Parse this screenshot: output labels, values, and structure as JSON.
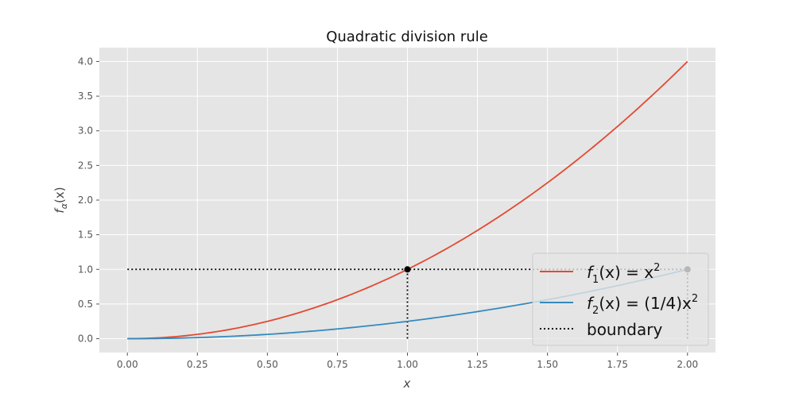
{
  "chart_data": {
    "type": "line",
    "title": "Quadratic division rule",
    "xlabel": "x",
    "ylabel": {
      "base": "f",
      "sub": "α",
      "rest": "(x)"
    },
    "xlim": [
      -0.1,
      2.1
    ],
    "ylim": [
      -0.2,
      4.2
    ],
    "xticks": [
      0.0,
      0.25,
      0.5,
      0.75,
      1.0,
      1.25,
      1.5,
      1.75,
      2.0
    ],
    "xtick_labels": [
      "0.00",
      "0.25",
      "0.50",
      "0.75",
      "1.00",
      "1.25",
      "1.50",
      "1.75",
      "2.00"
    ],
    "yticks": [
      0.0,
      0.5,
      1.0,
      1.5,
      2.0,
      2.5,
      3.0,
      3.5,
      4.0
    ],
    "ytick_labels": [
      "0.0",
      "0.5",
      "1.0",
      "1.5",
      "2.0",
      "2.5",
      "3.0",
      "3.5",
      "4.0"
    ],
    "grid": true,
    "legend_position": "bottom-right",
    "series": [
      {
        "key": "f1",
        "color": "#E24A33",
        "coef": 1.0,
        "x_range": [
          0,
          2
        ],
        "endpoints": [
          {
            "x": 0,
            "y": 0
          },
          {
            "x": 2,
            "y": 4
          }
        ],
        "legend": {
          "base": "f",
          "sub": "1",
          "mid": "(x) = x",
          "sup": "2",
          "pre": ""
        }
      },
      {
        "key": "f2",
        "color": "#348ABD",
        "coef": 0.25,
        "x_range": [
          0,
          2
        ],
        "endpoints": [
          {
            "x": 0,
            "y": 0
          },
          {
            "x": 2,
            "y": 1
          }
        ],
        "legend": {
          "base": "f",
          "sub": "2",
          "mid": "(x) = (1/4)x",
          "sup": "2",
          "pre": ""
        }
      }
    ],
    "boundary": {
      "label": "boundary",
      "color": "#000000",
      "hline": {
        "y": 1.0,
        "x_from": 0.0,
        "x_to": 2.0
      },
      "vlines": [
        {
          "x": 1.0,
          "y_from": 0.0,
          "y_to": 1.0
        },
        {
          "x": 2.0,
          "y_from": 0.0,
          "y_to": 1.0
        }
      ],
      "points": [
        {
          "x": 1.0,
          "y": 1.0
        },
        {
          "x": 2.0,
          "y": 1.0
        }
      ]
    }
  }
}
